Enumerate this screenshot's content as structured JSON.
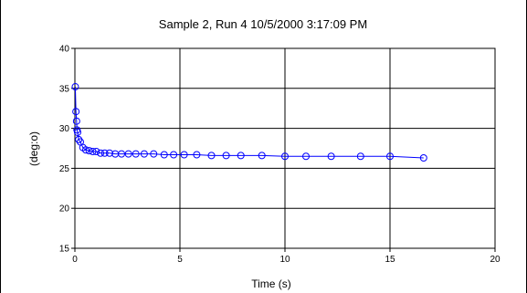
{
  "chart_data": {
    "type": "scatter",
    "title": "Sample 2, Run 4  10/5/2000 3:17:09 PM",
    "xlabel": "Time (s)",
    "ylabel": "(deg:o)",
    "xlim": [
      0,
      20
    ],
    "ylim": [
      15,
      40
    ],
    "xticks": [
      0,
      5,
      10,
      15,
      20
    ],
    "yticks": [
      15,
      20,
      25,
      30,
      35,
      40
    ],
    "grid": true,
    "legend": "none",
    "series_color": "#0000ff",
    "marker": "circle-open",
    "connect_points": true,
    "series": [
      {
        "x": [
          0.02,
          0.05,
          0.08,
          0.1,
          0.13,
          0.18,
          0.26,
          0.38,
          0.52,
          0.68,
          0.85,
          1.02,
          1.22,
          1.42,
          1.65,
          1.92,
          2.22,
          2.55,
          2.9,
          3.3,
          3.75,
          4.25,
          4.7,
          5.2,
          5.8,
          6.5,
          7.2,
          7.9,
          8.9,
          10.0,
          11.0,
          12.2,
          13.6,
          15.0,
          16.6
        ],
        "y": [
          35.2,
          32.1,
          30.9,
          29.8,
          29.5,
          28.6,
          28.3,
          27.6,
          27.3,
          27.2,
          27.1,
          27.1,
          26.9,
          26.9,
          26.9,
          26.8,
          26.8,
          26.8,
          26.8,
          26.8,
          26.8,
          26.7,
          26.7,
          26.7,
          26.7,
          26.6,
          26.6,
          26.6,
          26.6,
          26.5,
          26.5,
          26.5,
          26.5,
          26.5,
          26.3
        ]
      }
    ]
  }
}
